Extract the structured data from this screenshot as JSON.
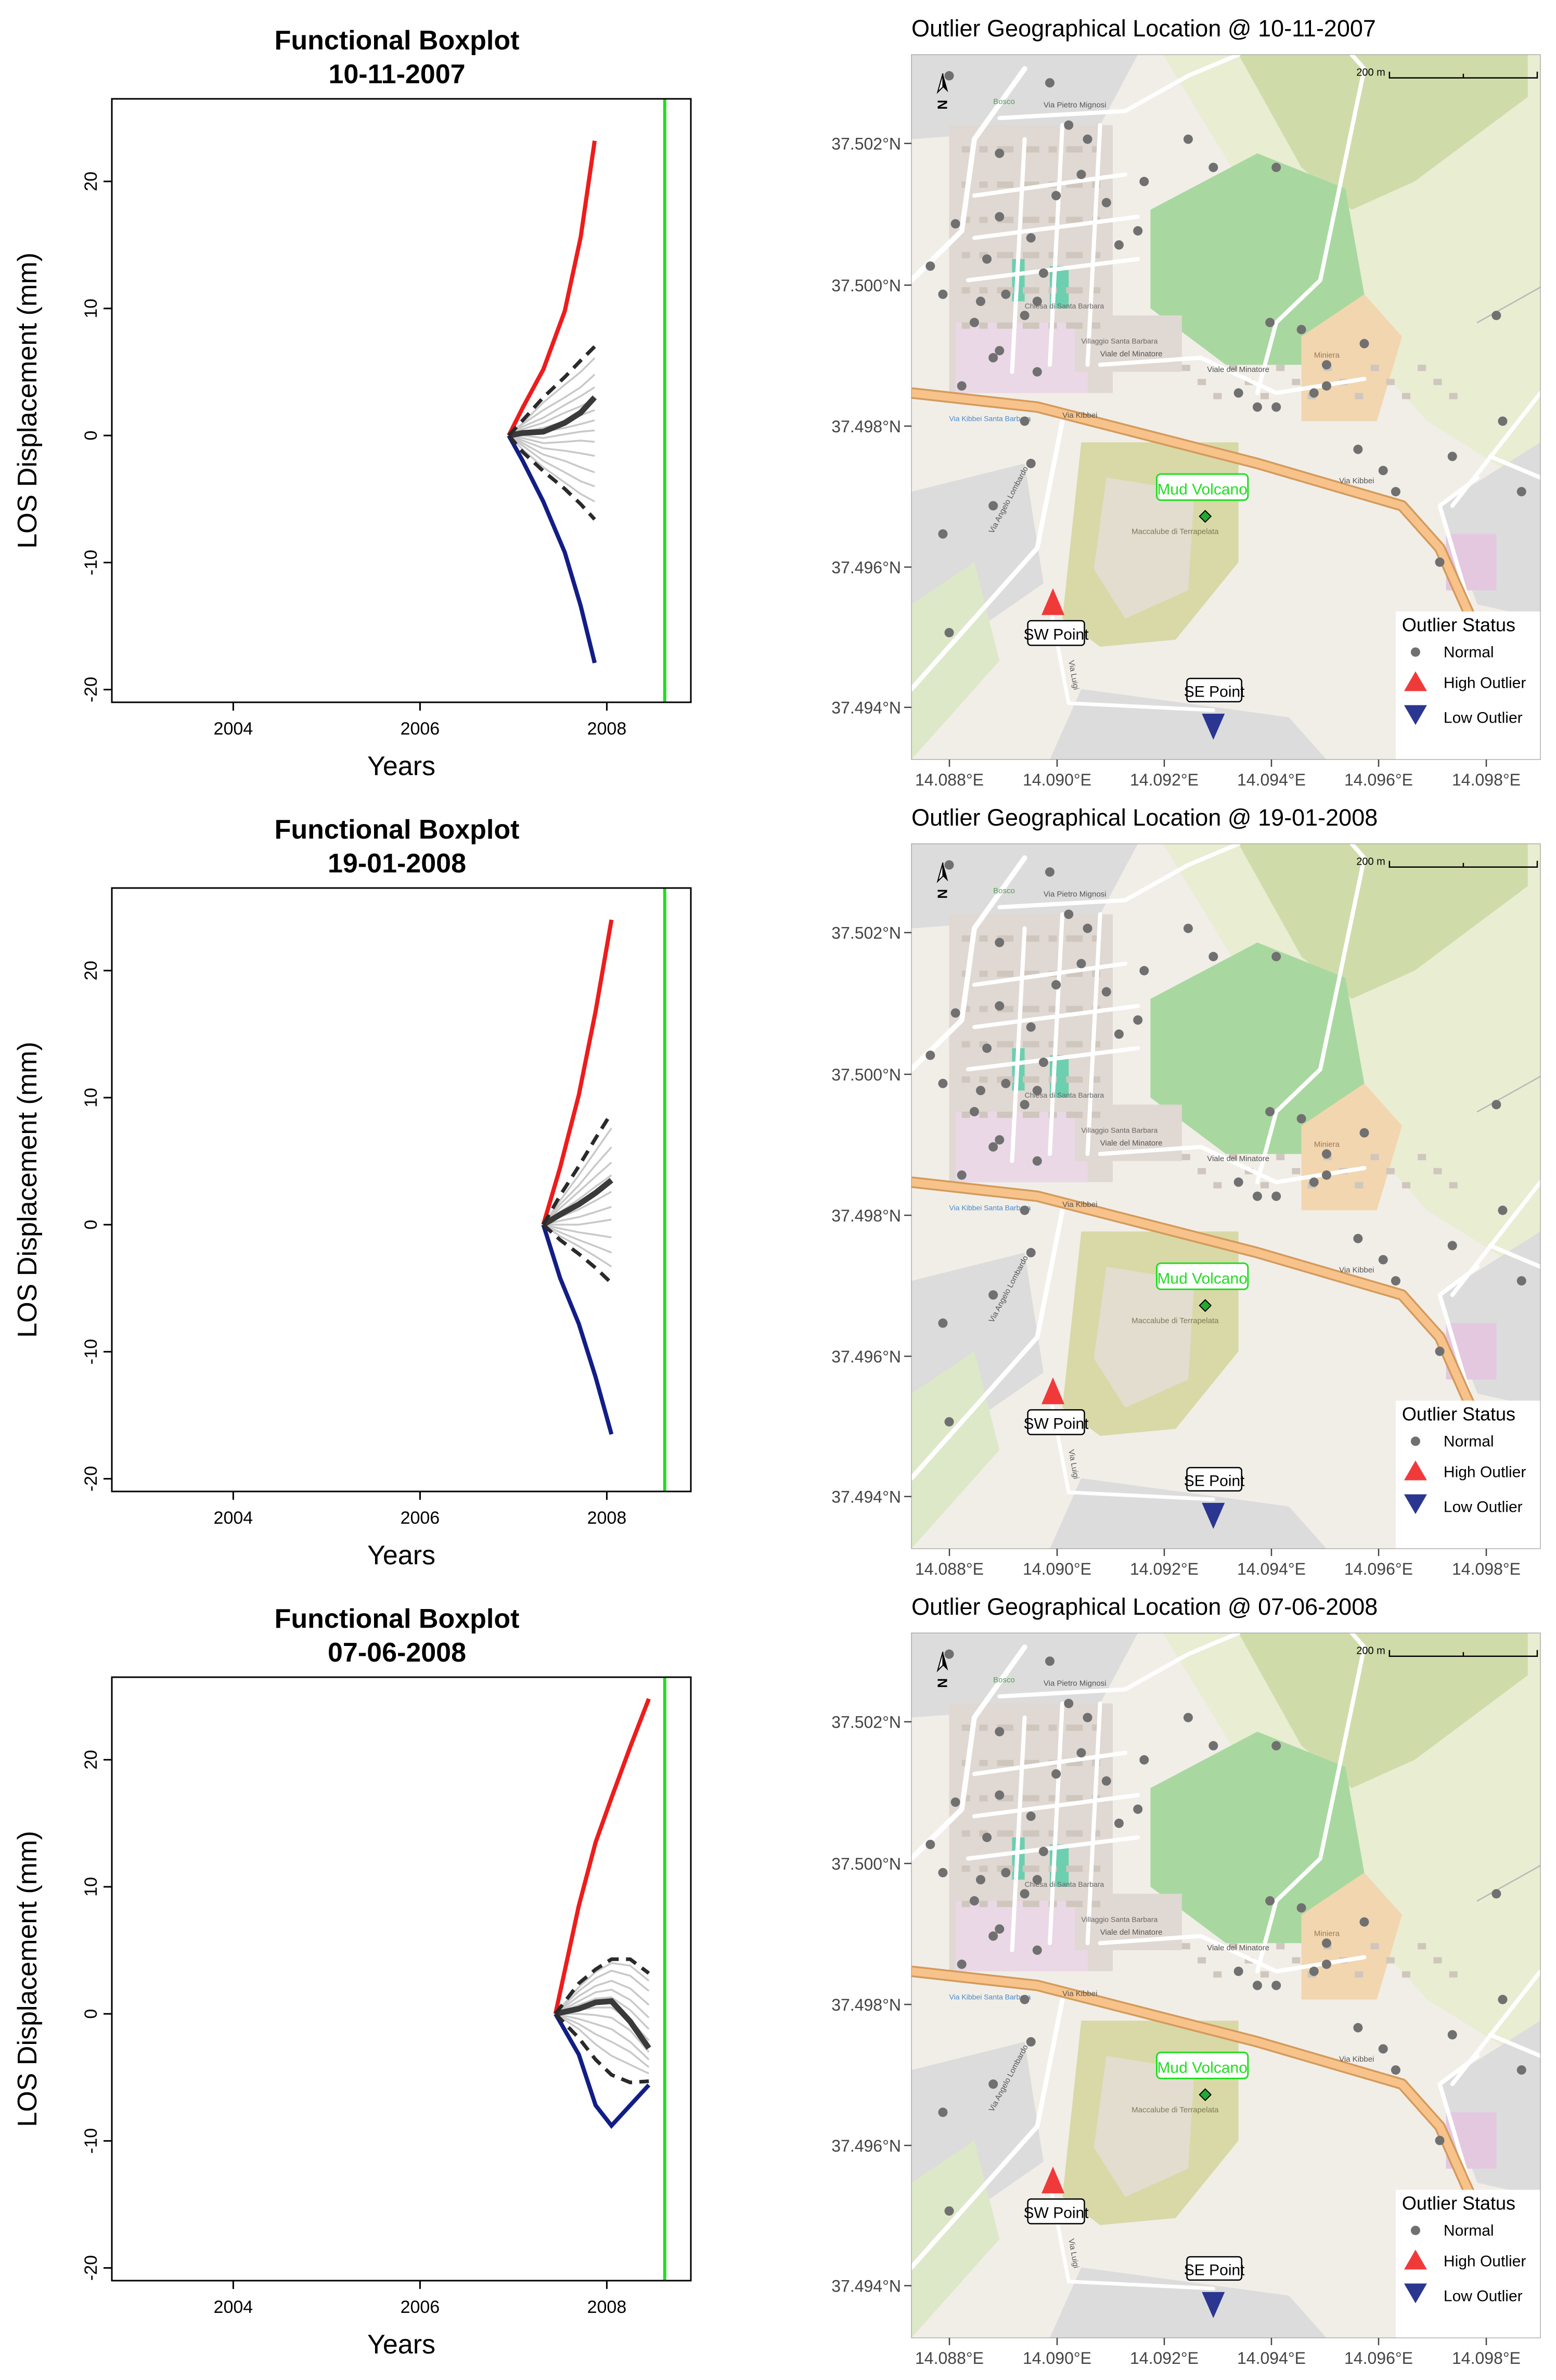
{
  "figure": {
    "rows": [
      {
        "date": "10-11-2007"
      },
      {
        "date": "19-01-2008"
      },
      {
        "date": "07-06-2008"
      }
    ]
  },
  "colors": {
    "high": "#ee1c1c",
    "low": "#121e86",
    "median": "#3a3a3a",
    "envelope": "#2a2a2a",
    "normal_curve": "#c8c8c8",
    "cutoff": "#22dd22",
    "normal_point": "#707070",
    "high_marker": "#f03a3a",
    "low_marker": "#2a3690",
    "volcano_label": "#22dd22"
  },
  "chart_data": [
    {
      "type": "line",
      "title": "Functional Boxplot",
      "subtitle": "10-11-2007",
      "xlabel": "Years",
      "ylabel": "LOS Displacement (mm)",
      "xlim": [
        2002.7,
        2008.9
      ],
      "ylim": [
        -21,
        26.5
      ],
      "xticks": [
        2004,
        2006,
        2008
      ],
      "yticks": [
        -20,
        -10,
        0,
        10,
        20
      ],
      "cutoff_x": 2008.62,
      "x": [
        2006.95,
        2007.1,
        2007.32,
        2007.55,
        2007.72,
        2007.87
      ],
      "series": [
        {
          "name": "High Outlier",
          "role": "high",
          "values": [
            0,
            2.2,
            5.2,
            9.8,
            15.6,
            23.2
          ]
        },
        {
          "name": "Low Outlier",
          "role": "low",
          "values": [
            0,
            -2.0,
            -5.2,
            -9.2,
            -13.4,
            -17.9
          ]
        },
        {
          "name": "Median",
          "role": "median",
          "values": [
            0,
            0.2,
            0.3,
            1.0,
            1.8,
            3.0
          ]
        },
        {
          "name": "Upper envelope",
          "role": "envelope",
          "values": [
            0,
            1.2,
            3.0,
            4.6,
            5.9,
            7.0
          ]
        },
        {
          "name": "Lower envelope",
          "role": "envelope",
          "values": [
            0,
            -1.3,
            -2.8,
            -4.2,
            -5.4,
            -6.6
          ]
        }
      ],
      "normal_curves": [
        [
          0,
          1.0,
          2.6,
          4.0,
          5.0,
          6.1
        ],
        [
          0,
          0.9,
          2.0,
          3.0,
          3.8,
          4.8
        ],
        [
          0,
          0.7,
          1.4,
          2.4,
          3.1,
          3.8
        ],
        [
          0,
          0.5,
          1.0,
          1.8,
          2.3,
          2.9
        ],
        [
          0,
          0.3,
          0.6,
          1.1,
          1.6,
          2.0
        ],
        [
          0,
          0.2,
          0.3,
          0.6,
          0.9,
          1.2
        ],
        [
          0,
          0.0,
          -0.2,
          0.1,
          0.3,
          0.4
        ],
        [
          0,
          -0.2,
          -0.6,
          -0.5,
          -0.4,
          -0.5
        ],
        [
          0,
          -0.4,
          -1.0,
          -1.2,
          -1.4,
          -1.6
        ],
        [
          0,
          -0.6,
          -1.5,
          -2.0,
          -2.5,
          -2.9
        ],
        [
          0,
          -0.8,
          -2.0,
          -2.9,
          -3.6,
          -4.0
        ],
        [
          0,
          -1.1,
          -2.5,
          -3.7,
          -4.6,
          -5.2
        ]
      ]
    },
    {
      "type": "line",
      "title": "Functional Boxplot",
      "subtitle": "19-01-2008",
      "xlabel": "Years",
      "ylabel": "LOS Displacement (mm)",
      "xlim": [
        2002.7,
        2008.9
      ],
      "ylim": [
        -21,
        26.5
      ],
      "xticks": [
        2004,
        2006,
        2008
      ],
      "yticks": [
        -20,
        -10,
        0,
        10,
        20
      ],
      "cutoff_x": 2008.62,
      "x": [
        2007.32,
        2007.5,
        2007.7,
        2007.88,
        2008.05
      ],
      "series": [
        {
          "name": "High Outlier",
          "role": "high",
          "values": [
            0,
            4.5,
            10.2,
            16.8,
            24.0
          ]
        },
        {
          "name": "Low Outlier",
          "role": "low",
          "values": [
            0,
            -4.2,
            -7.8,
            -12.0,
            -16.5
          ]
        },
        {
          "name": "Median",
          "role": "median",
          "values": [
            0,
            0.8,
            1.6,
            2.5,
            3.5
          ]
        },
        {
          "name": "Upper envelope",
          "role": "envelope",
          "values": [
            0,
            2.3,
            4.6,
            6.8,
            8.8
          ]
        },
        {
          "name": "Lower envelope",
          "role": "envelope",
          "values": [
            0,
            -1.2,
            -2.3,
            -3.4,
            -4.6
          ]
        }
      ],
      "normal_curves": [
        [
          0,
          1.9,
          3.9,
          5.8,
          7.6
        ],
        [
          0,
          1.6,
          3.1,
          4.7,
          6.1
        ],
        [
          0,
          1.3,
          2.6,
          3.8,
          4.9
        ],
        [
          0,
          1.0,
          2.0,
          3.0,
          3.9
        ],
        [
          0,
          0.6,
          1.2,
          1.9,
          2.6
        ],
        [
          0,
          0.3,
          0.6,
          1.0,
          1.4
        ],
        [
          0,
          0.0,
          0.0,
          0.2,
          0.4
        ],
        [
          0,
          -0.3,
          -0.6,
          -0.8,
          -1.0
        ],
        [
          0,
          -0.6,
          -1.2,
          -1.7,
          -2.2
        ],
        [
          0,
          -0.9,
          -1.7,
          -2.5,
          -3.3
        ]
      ]
    },
    {
      "type": "line",
      "title": "Functional Boxplot",
      "subtitle": "07-06-2008",
      "xlabel": "Years",
      "ylabel": "LOS Displacement (mm)",
      "xlim": [
        2002.7,
        2008.9
      ],
      "ylim": [
        -21,
        26.5
      ],
      "xticks": [
        2004,
        2006,
        2008
      ],
      "yticks": [
        -20,
        -10,
        0,
        10,
        20
      ],
      "cutoff_x": 2008.62,
      "x": [
        2007.45,
        2007.7,
        2007.88,
        2008.05,
        2008.25,
        2008.45
      ],
      "series": [
        {
          "name": "High Outlier",
          "role": "high",
          "values": [
            0,
            8.5,
            13.5,
            17.0,
            21.0,
            24.8
          ]
        },
        {
          "name": "Low Outlier",
          "role": "low",
          "values": [
            0,
            -3.2,
            -7.2,
            -8.8,
            -7.2,
            -5.6
          ]
        },
        {
          "name": "Median",
          "role": "median",
          "values": [
            0,
            0.4,
            0.9,
            1.0,
            -0.6,
            -2.7
          ]
        },
        {
          "name": "Upper envelope",
          "role": "envelope",
          "values": [
            0,
            2.4,
            3.5,
            4.3,
            4.3,
            3.2
          ]
        },
        {
          "name": "Lower envelope",
          "role": "envelope",
          "values": [
            0,
            -1.9,
            -3.6,
            -4.8,
            -5.4,
            -5.3
          ]
        }
      ],
      "normal_curves": [
        [
          0,
          2.1,
          3.3,
          4.0,
          3.8,
          2.6
        ],
        [
          0,
          1.8,
          2.8,
          3.4,
          3.0,
          1.8
        ],
        [
          0,
          1.4,
          2.2,
          2.6,
          2.0,
          0.7
        ],
        [
          0,
          1.0,
          1.7,
          1.9,
          1.1,
          -0.3
        ],
        [
          0,
          0.7,
          1.2,
          1.3,
          0.3,
          -1.2
        ],
        [
          0,
          0.3,
          0.5,
          0.5,
          -0.5,
          -2.1
        ],
        [
          0,
          0.0,
          -0.1,
          -0.3,
          -1.3,
          -3.0
        ],
        [
          0,
          -0.4,
          -0.8,
          -1.2,
          -2.2,
          -3.6
        ],
        [
          0,
          -0.8,
          -1.6,
          -2.2,
          -3.0,
          -4.2
        ],
        [
          0,
          -1.2,
          -2.4,
          -3.3,
          -4.0,
          -4.7
        ]
      ]
    }
  ],
  "maps": {
    "title_prefix": "Outlier Geographical Location @",
    "lat_ticks": [
      "37.502°N",
      "37.500°N",
      "37.498°N",
      "37.496°N",
      "37.494°N"
    ],
    "lon_ticks": [
      "14.088°E",
      "14.090°E",
      "14.092°E",
      "14.094°E",
      "14.096°E",
      "14.098°E"
    ],
    "scale_label": "200 m",
    "north_symbol": "N",
    "legend": {
      "title": "Outlier Status",
      "items": [
        "Normal",
        "High Outlier",
        "Low Outlier"
      ]
    },
    "labels": {
      "volcano": "Mud Volcano",
      "sw_point": "SW Point",
      "se_point": "SE Point"
    },
    "roads": {
      "kibbei": "Via Kibbei",
      "minatore": "Viale del Minatore",
      "pietro": "Via Pietro Mignosi",
      "angelo": "Via Angelo Lombardo",
      "luigi": "Via Luigi"
    },
    "place_labels": {
      "bosco": "Bosco",
      "chiesa": "Chiesa di Santa Barbara",
      "villaggio": "Villaggio Santa Barbara",
      "macalube": "Maccalube di Terrapelata",
      "mineraria": "Miniera",
      "via_kibbei_poi": "Via Kibbei Santa Barbara"
    }
  }
}
